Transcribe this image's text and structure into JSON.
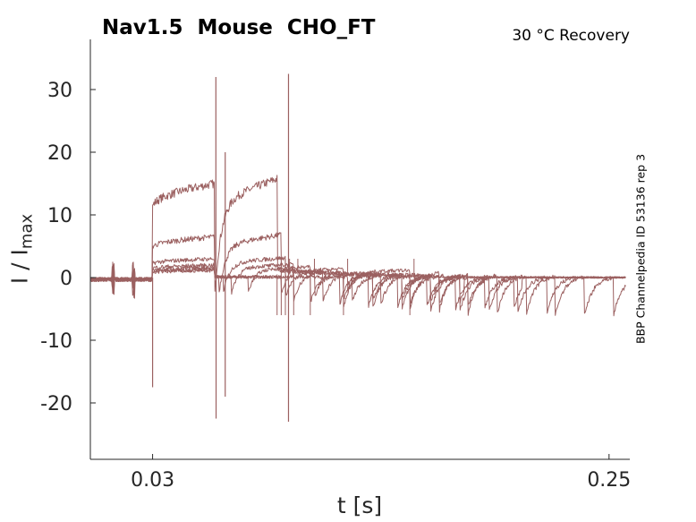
{
  "figure": {
    "title": "Nav1.5  Mouse  CHO_FT",
    "subtitle": "30 °C  Recovery",
    "side_label": "BBP Channelpedia ID 53136 rep 3",
    "trace_color": "#9b6060"
  },
  "chart_data": {
    "type": "line",
    "xlabel": "t [s]",
    "ylabel_main": "I / I",
    "ylabel_sub": "max",
    "xlim": [
      0.0,
      0.26
    ],
    "ylim": [
      -29,
      38
    ],
    "xticks": [
      0.03,
      0.25
    ],
    "xtick_labels": [
      "0.03",
      "0.25"
    ],
    "yticks": [
      30,
      20,
      10,
      0,
      -10,
      -20
    ],
    "ytick_labels": [
      "30",
      "20",
      "10",
      "0",
      "-10",
      "-20"
    ],
    "grid": false,
    "legend": "none",
    "recovery_intervals_s": [
      0.0,
      0.002,
      0.004,
      0.008,
      0.016,
      0.032,
      0.064
    ],
    "prepulse_start_s": 0.03,
    "recovery_start_s": 0.06,
    "test_pulse_length_s": 0.03,
    "trace_levels": [
      15.0,
      6.5,
      3.0,
      2.0,
      1.6,
      1.3,
      1.1
    ],
    "series": [
      {
        "x": [
          0.03,
          0.05,
          0.06,
          0.064,
          0.09,
          0.094,
          0.1
        ],
        "y": [
          12.0,
          14.0,
          15.0,
          13.0,
          15.5,
          16.0,
          2.0
        ]
      },
      {
        "x": [
          0.03,
          0.06,
          0.07,
          0.09,
          0.1
        ],
        "y": [
          4.0,
          6.5,
          5.5,
          7.0,
          1.8
        ]
      },
      {
        "x": [
          0.03,
          0.06,
          0.1,
          0.13
        ],
        "y": [
          2.5,
          3.0,
          2.0,
          1.5
        ]
      },
      {
        "x": [
          0.03,
          0.06,
          0.1,
          0.15
        ],
        "y": [
          1.8,
          2.0,
          1.8,
          1.2
        ]
      },
      {
        "x": [
          0.03,
          0.06,
          0.1,
          0.17
        ],
        "y": [
          1.5,
          1.6,
          1.5,
          1.0
        ]
      },
      {
        "x": [
          0.03,
          0.06,
          0.1,
          0.18
        ],
        "y": [
          1.3,
          1.3,
          1.2,
          0.8
        ]
      },
      {
        "x": [
          0.03,
          0.06,
          0.1,
          0.19
        ],
        "y": [
          1.1,
          1.1,
          1.0,
          0.6
        ]
      }
    ],
    "spikes": [
      {
        "x": 0.03,
        "y": -17.5
      },
      {
        "x": 0.0605,
        "y": 32
      },
      {
        "x": 0.0606,
        "y": -22.5
      },
      {
        "x": 0.065,
        "y": 20
      },
      {
        "x": 0.065,
        "y": -19
      },
      {
        "x": 0.0955,
        "y": 32.5
      },
      {
        "x": 0.0955,
        "y": -23
      }
    ]
  }
}
